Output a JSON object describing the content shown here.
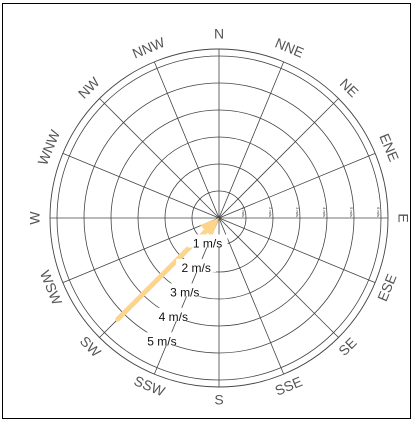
{
  "directions": [
    {
      "label": "N",
      "angle": 0
    },
    {
      "label": "NNE",
      "angle": 22.5
    },
    {
      "label": "NE",
      "angle": 45
    },
    {
      "label": "ENE",
      "angle": 67.5
    },
    {
      "label": "E",
      "angle": 90
    },
    {
      "label": "ESE",
      "angle": 112.5
    },
    {
      "label": "SE",
      "angle": 135
    },
    {
      "label": "SSE",
      "angle": 157.5
    },
    {
      "label": "S",
      "angle": 180
    },
    {
      "label": "SSW",
      "angle": 202.5
    },
    {
      "label": "SW",
      "angle": 225
    },
    {
      "label": "WSW",
      "angle": 247.5
    },
    {
      "label": "W",
      "angle": 270
    },
    {
      "label": "WNW",
      "angle": 292.5
    },
    {
      "label": "NW",
      "angle": 315
    },
    {
      "label": "NNW",
      "angle": 337.5
    }
  ],
  "rings": [
    {
      "label": "1 m/s",
      "small": "1 m/s"
    },
    {
      "label": "2 m/s",
      "small": "2 m/s"
    },
    {
      "label": "3 m/s",
      "small": "3 m/s"
    },
    {
      "label": "4 m/s",
      "small": "4 m/s"
    },
    {
      "label": "5 m/s",
      "small": "5 m/s"
    },
    {
      "label": "",
      "small": "6 m/s"
    }
  ],
  "wind_vector": {
    "from_direction": "SW",
    "speed_mps": 5.3,
    "color": "#fdd58a"
  }
}
